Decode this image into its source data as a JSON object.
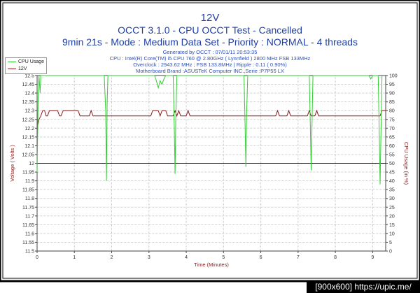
{
  "titles": {
    "line1": "12V",
    "line2": "OCCT 3.1.0 - CPU OCCT Test - Cancelled",
    "line3": "9min 21s - Mode : Medium Data Set - Priority : NORMAL - 4 threads"
  },
  "info": {
    "line1": "Generated by OCCT : 07/01/11 20:53:35",
    "line2": "CPU : Intel(R) Core(TM) i5 CPU 760 @ 2.80GHz ( Lynnfield ) 2800 MHz FSB 133MHz",
    "line3": "Overclock : 2943.62 MHz ; FSB 133.8MHz | Ripple : 0.11 ( 0.90%)",
    "line4": "Motherboard Brand :ASUSTeK Computer INC.,Serie :P7P55 LX"
  },
  "legend": {
    "items": [
      {
        "label": "CPU Usage",
        "color": "#32cd32"
      },
      {
        "label": "12V",
        "color": "#8b1a1a"
      }
    ]
  },
  "footer": {
    "text": "[900x600] https://upic.me/"
  },
  "colors": {
    "title": "#1f3fa6",
    "cpu": "#32cd32",
    "voltage": "#8b1a1a",
    "reference": "#0000ff",
    "frame": "#000000"
  },
  "chart_data": {
    "type": "line",
    "xlabel": "Time (Minutes)",
    "ylabel": "Voltage ( Volts )",
    "y2label": "CPU Usage (in %)",
    "xlim": [
      0,
      9.35
    ],
    "ylim": [
      11.5,
      12.5
    ],
    "y2lim": [
      0,
      100
    ],
    "x_ticks": [
      0,
      1,
      2,
      3,
      4,
      5,
      6,
      7,
      8,
      9
    ],
    "y_ticks": [
      "11.5",
      "11.55",
      "11.6",
      "11.65",
      "11.7",
      "11.75",
      "11.8",
      "11.85",
      "11.9",
      "11.95",
      "12",
      "12.05",
      "12.1",
      "12.15",
      "12.2",
      "12.25",
      "12.3",
      "12.35",
      "12.4",
      "12.45",
      "12.5"
    ],
    "y2_ticks": [
      "0",
      "5",
      "10",
      "15",
      "20",
      "25",
      "30",
      "35",
      "40",
      "45",
      "50",
      "55",
      "60",
      "65",
      "70",
      "75",
      "80",
      "85",
      "90",
      "95",
      "100"
    ],
    "grid": true,
    "legend_position": "top-left",
    "reference_line": {
      "axis": "y2",
      "value": 50
    },
    "series": [
      {
        "name": "12V",
        "axis": "y",
        "x": [
          0,
          0.05,
          0.1,
          0.15,
          0.2,
          0.24,
          0.28,
          0.33,
          0.55,
          0.6,
          0.64,
          0.7,
          1.1,
          1.15,
          1.2,
          1.4,
          1.45,
          1.5,
          3.05,
          3.1,
          3.15,
          3.25,
          3.3,
          3.35,
          3.45,
          3.5,
          3.55,
          3.65,
          3.7,
          3.75,
          3.8,
          3.85,
          3.9,
          4.0,
          4.05,
          4.1,
          6.4,
          6.45,
          6.5,
          6.7,
          6.75,
          6.8,
          7.25,
          7.3,
          7.35,
          7.45,
          7.5,
          7.55,
          9.2,
          9.25,
          9.35
        ],
        "values": [
          12.2,
          12.25,
          12.27,
          12.3,
          12.3,
          12.27,
          12.27,
          12.3,
          12.3,
          12.27,
          12.27,
          12.3,
          12.3,
          12.27,
          12.27,
          12.27,
          12.3,
          12.27,
          12.27,
          12.3,
          12.3,
          12.3,
          12.27,
          12.3,
          12.3,
          12.27,
          12.27,
          12.27,
          12.3,
          12.27,
          12.3,
          12.27,
          12.27,
          12.27,
          12.3,
          12.27,
          12.27,
          12.3,
          12.27,
          12.27,
          12.3,
          12.27,
          12.27,
          12.3,
          12.27,
          12.27,
          12.3,
          12.27,
          12.27,
          12.3,
          12.3
        ]
      },
      {
        "name": "CPU Usage",
        "axis": "y2",
        "x": [
          0,
          0.03,
          0.05,
          0.08,
          0.1,
          1.8,
          1.84,
          1.86,
          1.88,
          1.9,
          3.15,
          3.2,
          3.25,
          3.3,
          3.35,
          3.4,
          3.45,
          3.65,
          3.68,
          3.7,
          3.72,
          3.75,
          5.55,
          5.58,
          5.6,
          5.62,
          5.65,
          7.3,
          7.33,
          7.35,
          7.38,
          7.4,
          8.9,
          8.95,
          9.0,
          9.15,
          9.18,
          9.2,
          9.23,
          9.25
        ],
        "values": [
          45,
          90,
          100,
          90,
          100,
          100,
          80,
          40,
          85,
          100,
          100,
          97,
          93,
          97,
          95,
          98,
          100,
          100,
          70,
          44,
          75,
          100,
          100,
          70,
          48,
          78,
          100,
          100,
          70,
          46,
          80,
          100,
          100,
          98,
          100,
          100,
          65,
          38,
          75,
          100
        ]
      }
    ]
  }
}
